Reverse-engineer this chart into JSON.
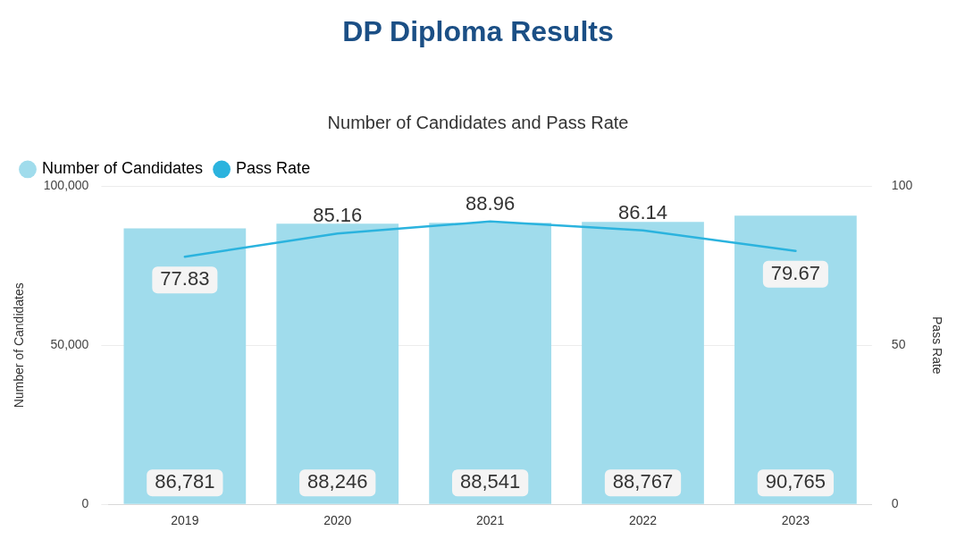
{
  "chart_data": {
    "type": "bar",
    "title": "DP Diploma Results",
    "subtitle": "Number of Candidates and Pass Rate",
    "ylabel": "Number of Candidates",
    "y2label": "Pass Rate",
    "categories": [
      "2019",
      "2020",
      "2021",
      "2022",
      "2023"
    ],
    "series": [
      {
        "name": "Number of Candidates",
        "type": "bar",
        "color": "#a0dcec",
        "values": [
          86781,
          88246,
          88541,
          88767,
          90765
        ],
        "value_labels": [
          "86,781",
          "88,246",
          "88,541",
          "88,767",
          "90,765"
        ]
      },
      {
        "name": "Pass Rate",
        "type": "line",
        "axis": "y2",
        "color": "#2bb3de",
        "values": [
          77.83,
          85.16,
          88.96,
          86.14,
          79.67
        ],
        "value_labels": [
          "77.83",
          "85.16",
          "88.96",
          "86.14",
          "79.67"
        ]
      }
    ],
    "ylim": [
      0,
      100000
    ],
    "yticks": [
      0,
      {
        "value": 50000,
        "label": "50,000"
      },
      {
        "value": 100000,
        "label": "100,000"
      }
    ],
    "y2lim": [
      0,
      100
    ],
    "y2ticks": [
      0,
      50,
      100
    ],
    "grid": "y",
    "legend": "top left",
    "marker": "none"
  }
}
